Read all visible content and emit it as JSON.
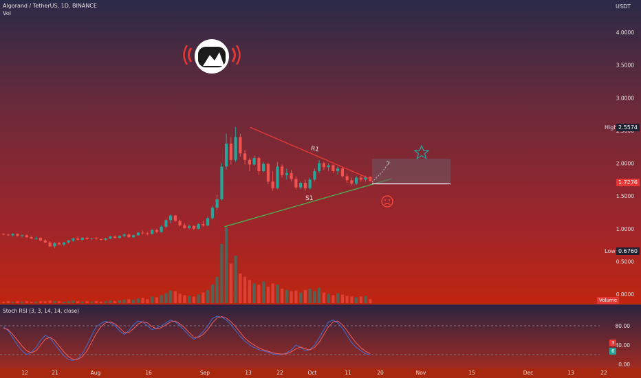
{
  "header": {
    "symbol_line": "Algorand / TetherUS, 1D, BINANCE",
    "vol_label": "Vol",
    "currency": "USDT"
  },
  "price_axis": {
    "ticks": [
      "4.0000",
      "3.5000",
      "3.0000",
      "2.5000",
      "2.0000",
      "1.5000",
      "1.0000",
      "0.5000",
      "0.0000"
    ],
    "high_label": "High",
    "high_value": "2.5574",
    "low_label": "Low",
    "low_value": "0.6760",
    "last_price": "1.7276",
    "volume_label": "Volume"
  },
  "rsi": {
    "title": "Stoch RSI (3, 3, 14, 14, close)",
    "ticks": [
      "80.00",
      "40.00",
      "0.00"
    ],
    "k_label": "3",
    "d_label": "6"
  },
  "x_axis": {
    "ticks": [
      "12",
      "21",
      "Aug",
      "16",
      "Sep",
      "13",
      "22",
      "Oct",
      "11",
      "20",
      "Nov",
      "15",
      "Dec",
      "13",
      "22"
    ]
  },
  "annotations": {
    "resistance_label": "R1",
    "support_label": "S1",
    "star_icon": "star-icon",
    "sad_face_icon": "sad-face-icon",
    "logo_icon": "astronaut-logo-icon"
  },
  "colors": {
    "up": "#26a69a",
    "down": "#ef5350",
    "resistance": "#e53935",
    "support": "#4caf50",
    "k_line": "#3f6fd8",
    "d_line": "#f06060"
  },
  "chart_data": {
    "type": "candlestick",
    "title": "Algorand / TetherUS, 1D, BINANCE",
    "y_range": [
      0,
      4.2
    ],
    "key_levels": {
      "high": 2.5574,
      "low": 0.676,
      "last": 1.7276
    },
    "trendlines": [
      {
        "name": "R1",
        "from": [
          0.39,
          2.55
        ],
        "to": [
          0.58,
          1.75
        ]
      },
      {
        "name": "S1",
        "from": [
          0.35,
          1.03
        ],
        "to": [
          0.61,
          1.76
        ]
      }
    ],
    "ohlc": [
      [
        0.92,
        0.93,
        0.9,
        0.91
      ],
      [
        0.91,
        0.92,
        0.89,
        0.9
      ],
      [
        0.9,
        0.93,
        0.88,
        0.92
      ],
      [
        0.92,
        0.93,
        0.88,
        0.89
      ],
      [
        0.89,
        0.91,
        0.87,
        0.9
      ],
      [
        0.9,
        0.91,
        0.86,
        0.87
      ],
      [
        0.87,
        0.89,
        0.84,
        0.85
      ],
      [
        0.85,
        0.88,
        0.83,
        0.86
      ],
      [
        0.86,
        0.87,
        0.81,
        0.82
      ],
      [
        0.82,
        0.84,
        0.78,
        0.79
      ],
      [
        0.79,
        0.81,
        0.72,
        0.73
      ],
      [
        0.73,
        0.8,
        0.7,
        0.78
      ],
      [
        0.78,
        0.8,
        0.75,
        0.76
      ],
      [
        0.76,
        0.8,
        0.74,
        0.79
      ],
      [
        0.79,
        0.83,
        0.77,
        0.82
      ],
      [
        0.82,
        0.86,
        0.8,
        0.85
      ],
      [
        0.85,
        0.88,
        0.82,
        0.83
      ],
      [
        0.83,
        0.87,
        0.82,
        0.86
      ],
      [
        0.86,
        0.88,
        0.83,
        0.84
      ],
      [
        0.84,
        0.86,
        0.82,
        0.85
      ],
      [
        0.85,
        0.87,
        0.83,
        0.84
      ],
      [
        0.84,
        0.85,
        0.82,
        0.83
      ],
      [
        0.83,
        0.86,
        0.81,
        0.85
      ],
      [
        0.85,
        0.89,
        0.84,
        0.88
      ],
      [
        0.88,
        0.9,
        0.85,
        0.86
      ],
      [
        0.86,
        0.9,
        0.85,
        0.89
      ],
      [
        0.89,
        0.93,
        0.87,
        0.91
      ],
      [
        0.91,
        0.93,
        0.86,
        0.87
      ],
      [
        0.87,
        0.91,
        0.86,
        0.9
      ],
      [
        0.9,
        0.95,
        0.89,
        0.94
      ],
      [
        0.94,
        0.97,
        0.91,
        0.93
      ],
      [
        0.93,
        0.95,
        0.9,
        0.92
      ],
      [
        0.92,
        1.0,
        0.91,
        0.98
      ],
      [
        0.98,
        1.0,
        0.93,
        0.95
      ],
      [
        0.95,
        1.05,
        0.94,
        1.03
      ],
      [
        1.03,
        1.15,
        1.01,
        1.13
      ],
      [
        1.13,
        1.22,
        1.08,
        1.2
      ],
      [
        1.2,
        1.21,
        1.1,
        1.12
      ],
      [
        1.12,
        1.14,
        1.03,
        1.05
      ],
      [
        1.05,
        1.08,
        1.0,
        1.01
      ],
      [
        1.01,
        1.06,
        0.99,
        1.04
      ],
      [
        1.04,
        1.05,
        0.98,
        1.0
      ],
      [
        1.0,
        1.08,
        0.99,
        1.07
      ],
      [
        1.07,
        1.12,
        1.03,
        1.05
      ],
      [
        1.05,
        1.18,
        1.04,
        1.16
      ],
      [
        1.16,
        1.35,
        1.14,
        1.32
      ],
      [
        1.32,
        1.52,
        1.28,
        1.45
      ],
      [
        1.45,
        2.0,
        1.43,
        1.95
      ],
      [
        1.95,
        2.45,
        1.9,
        2.3
      ],
      [
        2.3,
        2.4,
        1.98,
        2.05
      ],
      [
        2.05,
        2.55,
        2.02,
        2.4
      ],
      [
        2.4,
        2.45,
        2.1,
        2.15
      ],
      [
        2.15,
        2.2,
        1.98,
        2.05
      ],
      [
        2.05,
        2.08,
        1.88,
        1.98
      ],
      [
        1.98,
        2.12,
        1.96,
        2.08
      ],
      [
        2.08,
        2.1,
        1.82,
        1.88
      ],
      [
        1.88,
        2.02,
        1.86,
        1.99
      ],
      [
        1.99,
        2.0,
        1.68,
        1.72
      ],
      [
        1.72,
        1.88,
        1.58,
        1.62
      ],
      [
        1.62,
        2.02,
        1.6,
        1.95
      ],
      [
        1.95,
        1.98,
        1.78,
        1.82
      ],
      [
        1.82,
        1.92,
        1.75,
        1.85
      ],
      [
        1.85,
        1.9,
        1.72,
        1.76
      ],
      [
        1.76,
        1.8,
        1.6,
        1.63
      ],
      [
        1.63,
        1.72,
        1.6,
        1.7
      ],
      [
        1.7,
        1.75,
        1.58,
        1.62
      ],
      [
        1.62,
        1.78,
        1.6,
        1.75
      ],
      [
        1.75,
        1.92,
        1.72,
        1.88
      ],
      [
        1.88,
        2.05,
        1.85,
        2.0
      ],
      [
        2.0,
        2.02,
        1.9,
        1.94
      ],
      [
        1.94,
        2.0,
        1.88,
        1.97
      ],
      [
        1.97,
        1.98,
        1.85,
        1.88
      ],
      [
        1.88,
        1.95,
        1.82,
        1.92
      ],
      [
        1.92,
        1.94,
        1.78,
        1.8
      ],
      [
        1.8,
        1.84,
        1.7,
        1.74
      ],
      [
        1.74,
        1.78,
        1.66,
        1.69
      ],
      [
        1.69,
        1.8,
        1.67,
        1.78
      ],
      [
        1.78,
        1.82,
        1.72,
        1.75
      ],
      [
        1.75,
        1.81,
        1.72,
        1.79
      ],
      [
        1.79,
        1.8,
        1.72,
        1.73
      ]
    ],
    "volume": [
      0.02,
      0.03,
      0.02,
      0.03,
      0.02,
      0.03,
      0.02,
      0.02,
      0.03,
      0.03,
      0.04,
      0.03,
      0.03,
      0.02,
      0.03,
      0.04,
      0.03,
      0.02,
      0.03,
      0.02,
      0.03,
      0.02,
      0.03,
      0.04,
      0.03,
      0.04,
      0.05,
      0.06,
      0.05,
      0.07,
      0.08,
      0.06,
      0.1,
      0.09,
      0.12,
      0.15,
      0.19,
      0.18,
      0.14,
      0.12,
      0.11,
      0.1,
      0.13,
      0.16,
      0.2,
      0.28,
      0.4,
      0.9,
      1.15,
      0.6,
      0.72,
      0.45,
      0.4,
      0.35,
      0.3,
      0.28,
      0.33,
      0.25,
      0.3,
      0.28,
      0.22,
      0.2,
      0.18,
      0.19,
      0.16,
      0.2,
      0.22,
      0.18,
      0.23,
      0.16,
      0.14,
      0.12,
      0.15,
      0.13,
      0.11,
      0.1,
      0.09,
      0.1,
      0.11,
      0.06
    ],
    "stoch_rsi": {
      "k": [
        78,
        70,
        55,
        40,
        28,
        20,
        25,
        35,
        50,
        60,
        55,
        42,
        30,
        18,
        10,
        8,
        12,
        22,
        40,
        60,
        78,
        85,
        90,
        86,
        80,
        70,
        62,
        70,
        82,
        90,
        88,
        80,
        72,
        75,
        80,
        86,
        92,
        88,
        80,
        70,
        60,
        52,
        58,
        68,
        80,
        95,
        100,
        98,
        92,
        82,
        70,
        58,
        48,
        40,
        35,
        30,
        28,
        25,
        22,
        20,
        20,
        24,
        30,
        40,
        35,
        28,
        30,
        40,
        55,
        72,
        88,
        92,
        86,
        75,
        60,
        45,
        35,
        28,
        22,
        20
      ],
      "d": [
        75,
        72,
        62,
        50,
        38,
        28,
        24,
        28,
        40,
        52,
        56,
        50,
        38,
        26,
        16,
        10,
        10,
        16,
        28,
        46,
        64,
        78,
        86,
        88,
        84,
        76,
        66,
        66,
        74,
        84,
        88,
        86,
        78,
        74,
        76,
        82,
        88,
        90,
        84,
        76,
        66,
        56,
        56,
        62,
        72,
        86,
        96,
        99,
        96,
        88,
        78,
        66,
        54,
        46,
        40,
        34,
        30,
        27,
        24,
        22,
        21,
        22,
        26,
        32,
        36,
        32,
        30,
        35,
        46,
        62,
        78,
        88,
        90,
        82,
        70,
        56,
        44,
        34,
        27,
        22
      ]
    }
  }
}
